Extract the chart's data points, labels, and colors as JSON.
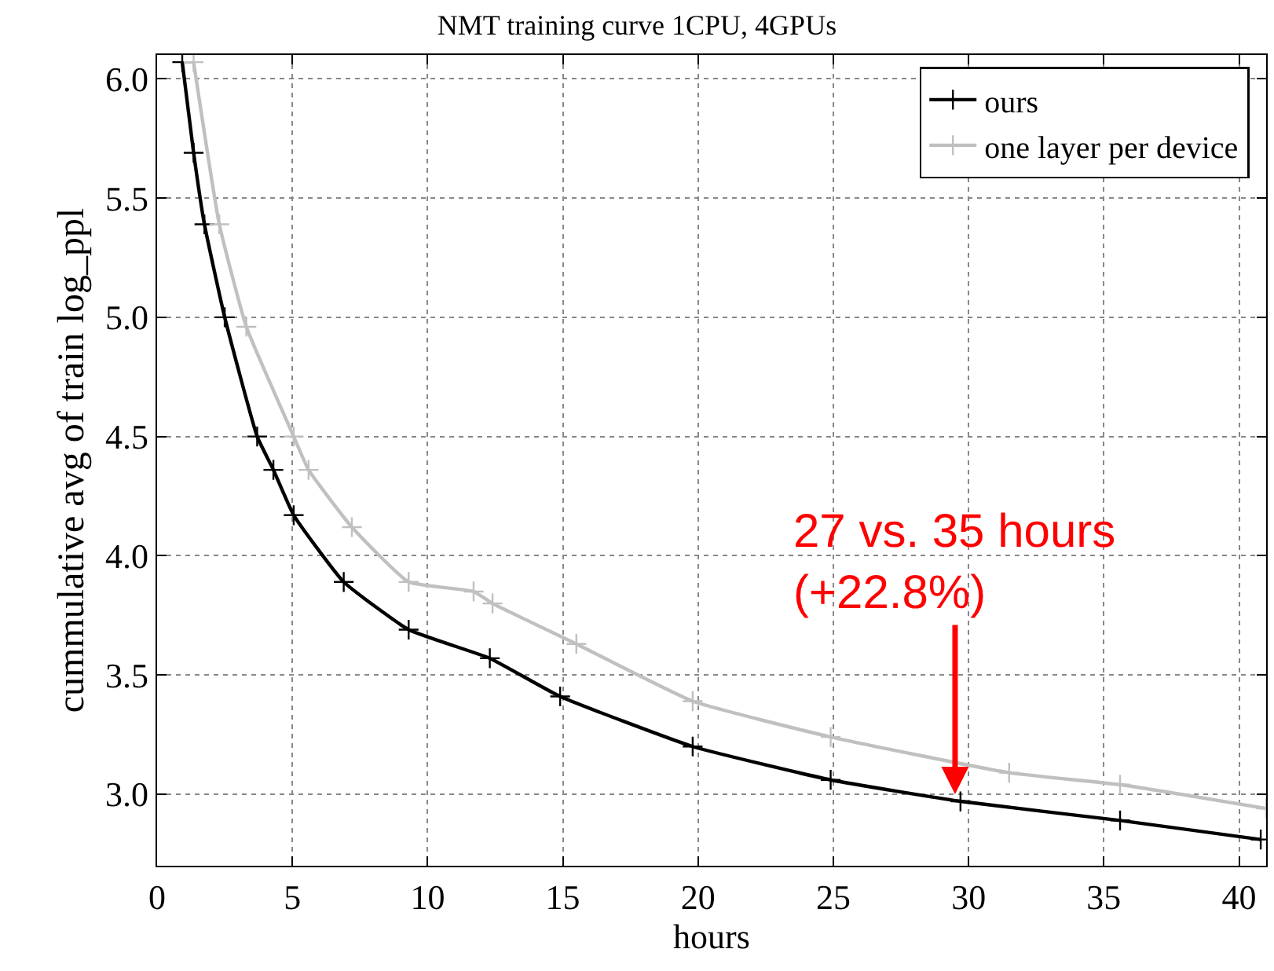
{
  "chart_data": {
    "type": "line",
    "title": "NMT training curve 1CPU, 4GPUs",
    "xlabel": "hours",
    "ylabel": "cummulative avg of train log_ppl",
    "series": [
      {
        "name": "ours",
        "color": "#000000",
        "marker": "cross",
        "x": [
          0.93,
          1.35,
          1.75,
          2.5,
          3.7,
          4.3,
          5.05,
          6.9,
          9.3,
          12.3,
          14.9,
          19.8,
          24.9,
          29.7,
          35.6,
          40.8
        ],
        "values": [
          6.07,
          5.69,
          5.39,
          5.0,
          4.5,
          4.36,
          4.17,
          3.89,
          3.69,
          3.57,
          3.41,
          3.2,
          3.06,
          2.97,
          2.89,
          2.81
        ]
      },
      {
        "name": "one layer per device",
        "color": "#c0c0c0",
        "marker": "cross",
        "x": [
          1.35,
          2.3,
          3.3,
          5.05,
          5.6,
          7.2,
          9.3,
          11.7,
          12.4,
          15.5,
          19.8,
          24.9,
          31.5,
          35.6,
          41.0
        ],
        "values": [
          6.07,
          5.39,
          4.96,
          4.5,
          4.36,
          4.12,
          3.89,
          3.85,
          3.8,
          3.63,
          3.39,
          3.24,
          3.09,
          3.04,
          2.94
        ]
      }
    ],
    "annotations": [
      {
        "text": "27 vs. 35 hours\n(+22.8%)",
        "x": 29.5,
        "y": 3.0
      }
    ],
    "xlim": [
      0,
      41
    ],
    "xticks": [
      0,
      5,
      10,
      15,
      20,
      25,
      30,
      35,
      40
    ],
    "ylim": [
      2.7,
      6.1
    ],
    "yticks": [
      {
        "value": 3.0,
        "label": "3.0"
      },
      {
        "value": 3.5,
        "label": "3.5"
      },
      {
        "value": 4.0,
        "label": "4.0"
      },
      {
        "value": 4.5,
        "label": "4.5"
      },
      {
        "value": 5.0,
        "label": "5.0"
      },
      {
        "value": 5.5,
        "label": "5.5"
      },
      {
        "value": 6.0,
        "label": "6.0"
      }
    ],
    "grid": true,
    "legend": "top right",
    "line_style": "solid"
  }
}
